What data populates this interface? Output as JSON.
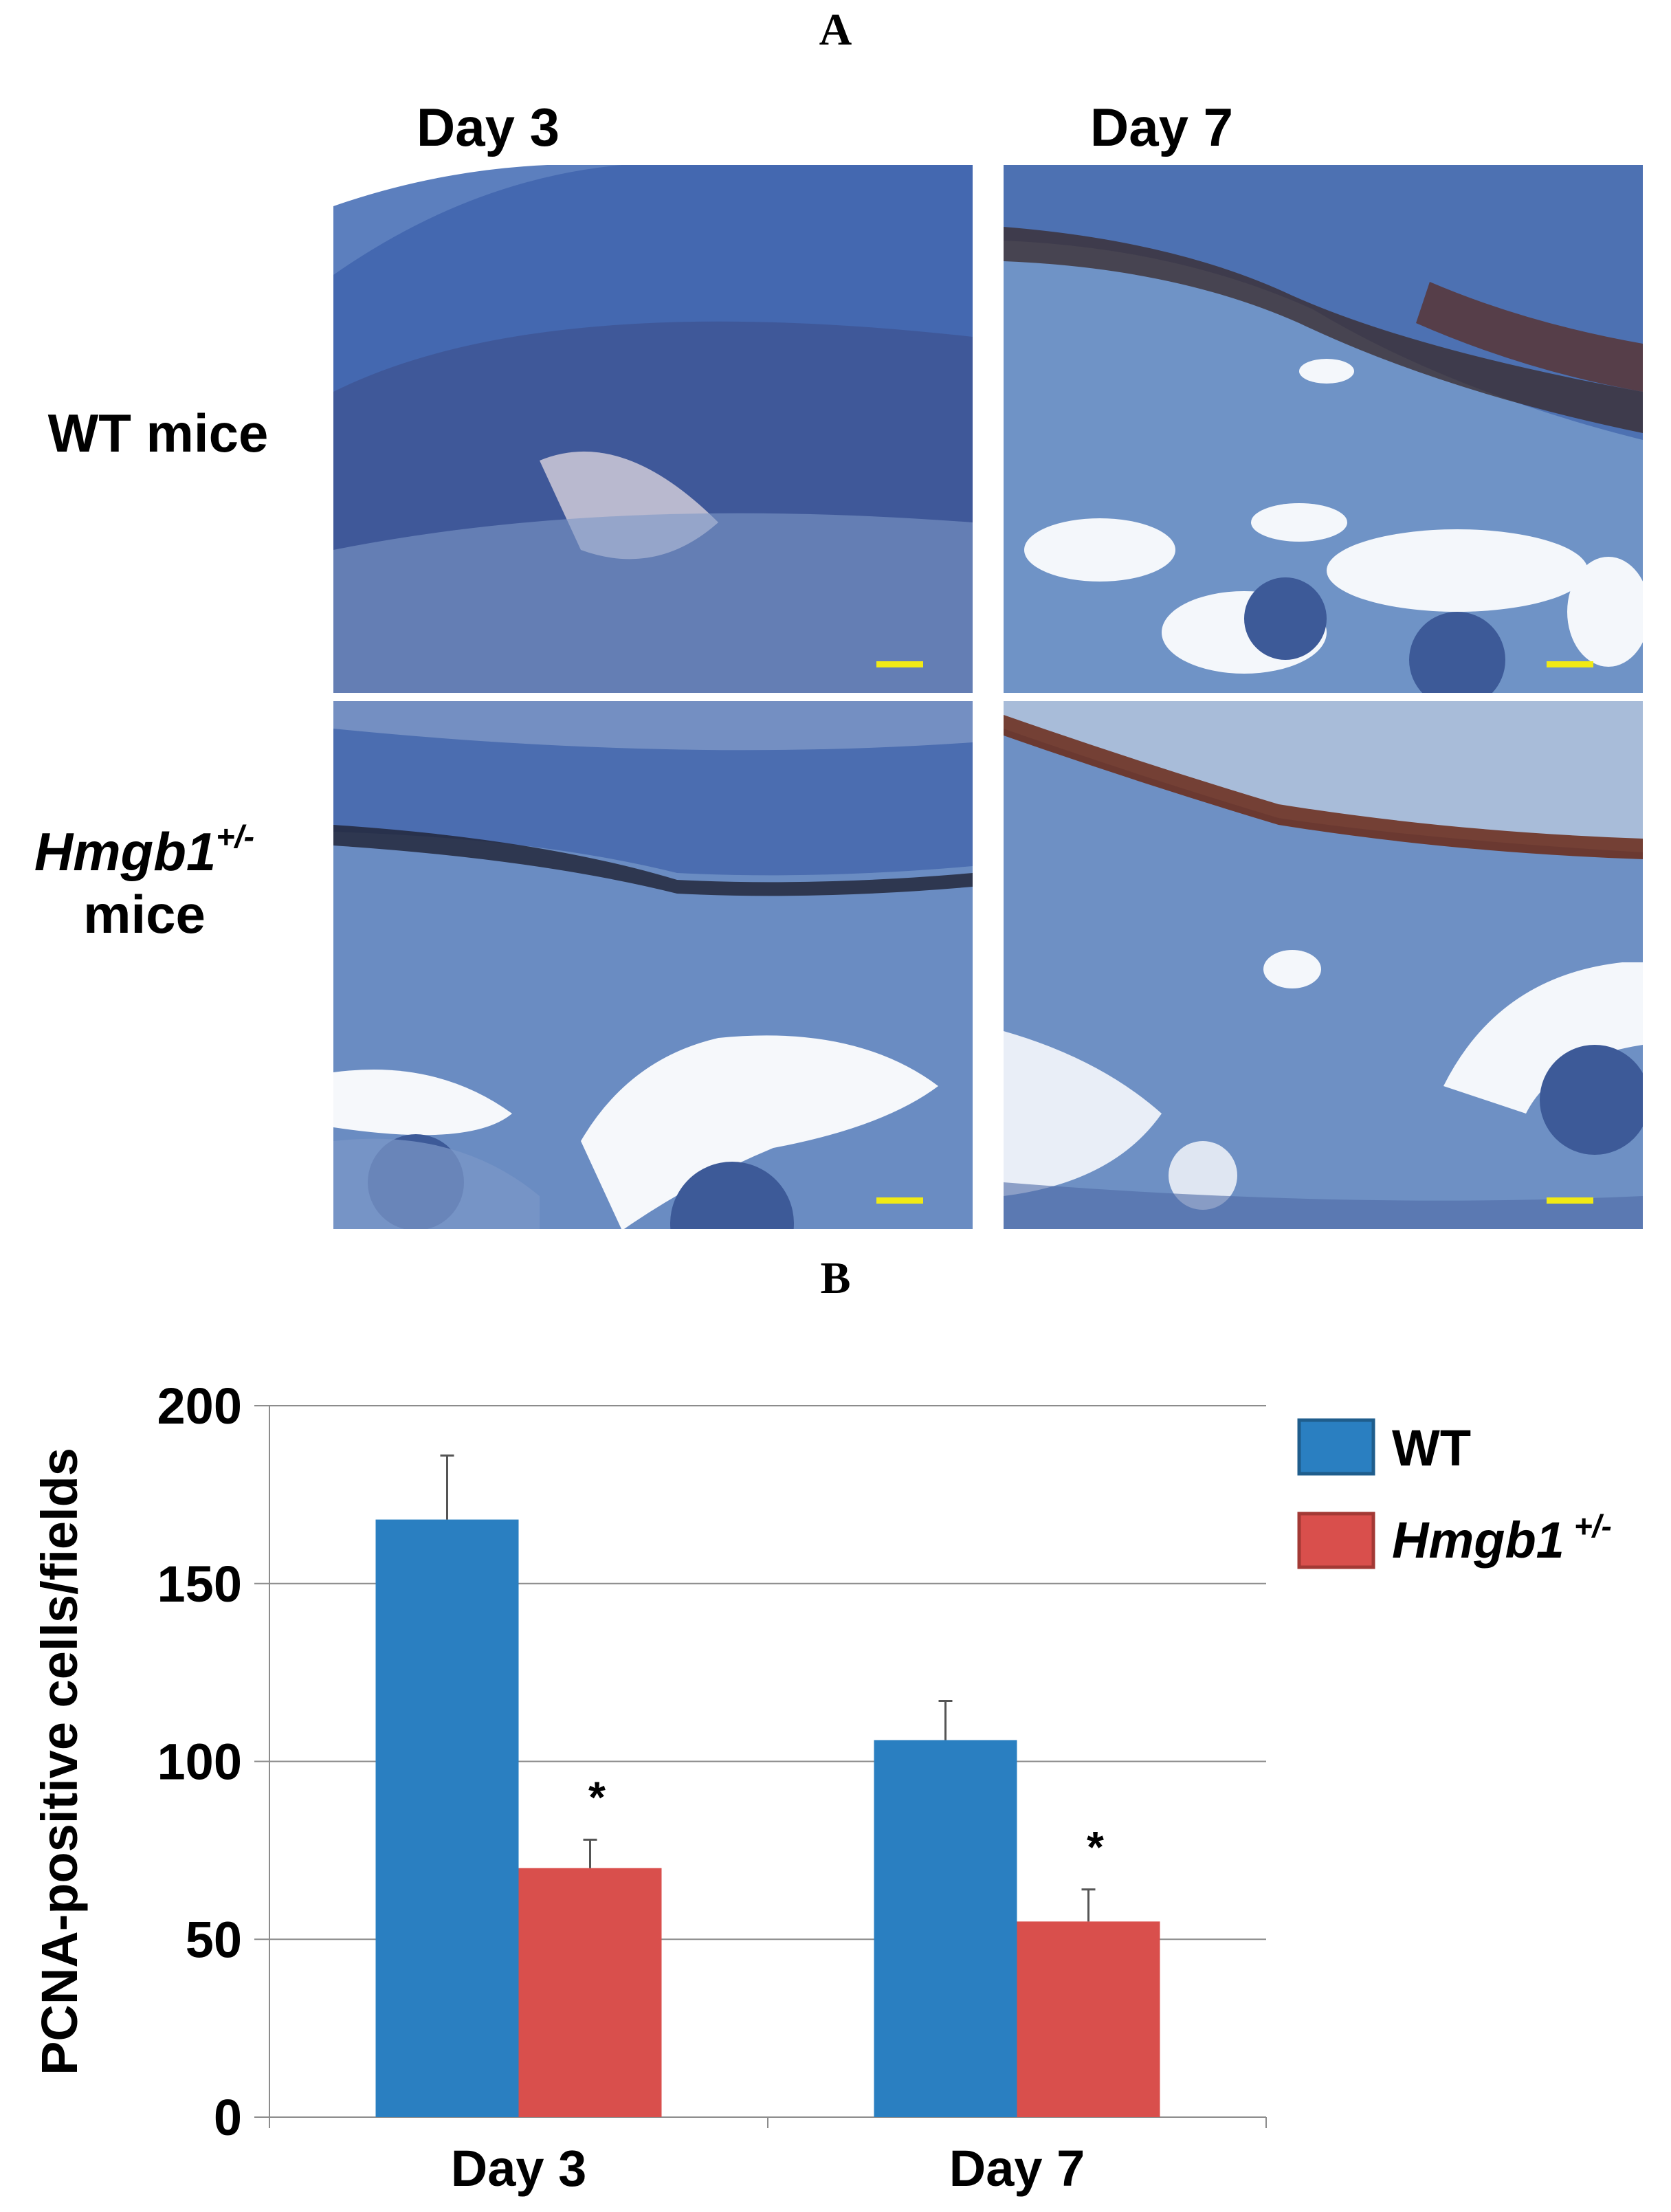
{
  "panel_a": {
    "letter": "A",
    "columns": [
      "Day 3",
      "Day 7"
    ],
    "rows": [
      {
        "label_italic": "",
        "sup": "",
        "label": "WT mice"
      },
      {
        "label_italic": "Hmgb1",
        "sup": "+/-",
        "label": "mice"
      }
    ],
    "colors": {
      "stroma": "#5f86bd",
      "epidermis": "#4a6fb4",
      "nuclei_dark": "#2a1a1e",
      "nuclei_brown": "#6b2a18",
      "fat_space": "#f4f7fb",
      "scale_bar": "#f1ea14"
    }
  },
  "panel_b": {
    "letter": "B",
    "chart_data": {
      "type": "bar",
      "categories": [
        "Day 3",
        "Day 7"
      ],
      "series": [
        {
          "name": "WT",
          "values": [
            168,
            106
          ],
          "errors": [
            18,
            11
          ],
          "color": "#2a7fc1",
          "significance": [
            "",
            ""
          ]
        },
        {
          "name_italic": "Hmgb1",
          "name_sup": "+/-",
          "values": [
            70,
            55
          ],
          "errors": [
            8,
            9
          ],
          "color": "#d94f4c",
          "significance": [
            "*",
            "*"
          ]
        }
      ],
      "ylabel": "PCNA-positive cells/fields",
      "ylim": [
        0,
        200
      ],
      "yticks": [
        0,
        50,
        100,
        150,
        200
      ],
      "grid": true,
      "legend_position": "top-right"
    }
  }
}
